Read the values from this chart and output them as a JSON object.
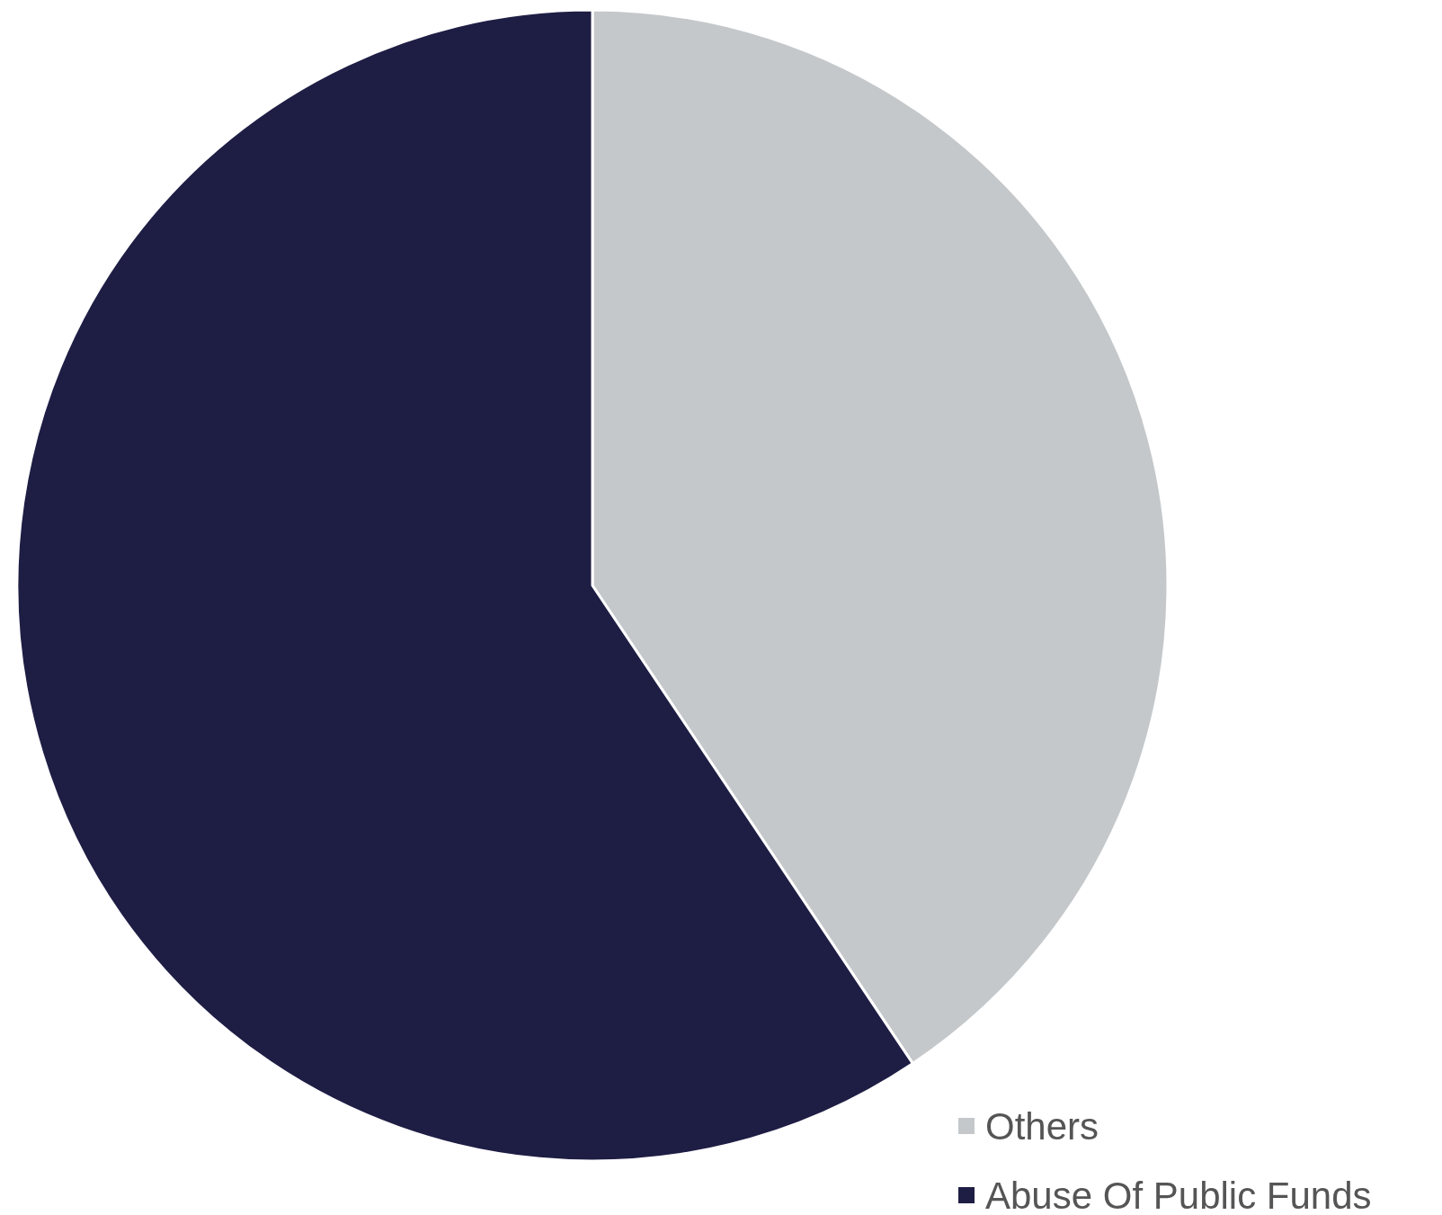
{
  "chart_data": {
    "type": "pie",
    "categories": [
      "Others",
      "Abuse Of Public Funds"
    ],
    "values": [
      40.6,
      59.4
    ],
    "colors": [
      "#c4c8cb",
      "#1e1d44"
    ],
    "legend": "bottom right"
  }
}
